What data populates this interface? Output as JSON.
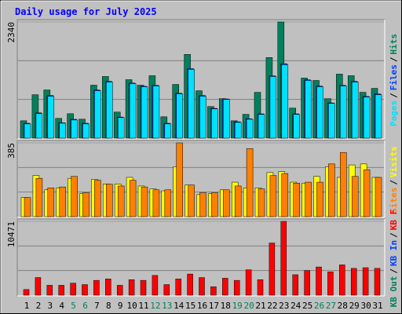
{
  "chart_data": {
    "type": "bar",
    "title": "Daily usage for July 2025",
    "categories": [
      "1",
      "2",
      "3",
      "4",
      "5",
      "6",
      "7",
      "8",
      "9",
      "10",
      "11",
      "12",
      "13",
      "14",
      "15",
      "16",
      "17",
      "18",
      "19",
      "20",
      "21",
      "22",
      "23",
      "24",
      "25",
      "26",
      "27",
      "28",
      "29",
      "30",
      "31"
    ],
    "weekend": [
      false,
      false,
      false,
      false,
      true,
      true,
      false,
      false,
      false,
      false,
      false,
      true,
      true,
      false,
      false,
      false,
      false,
      false,
      true,
      true,
      false,
      false,
      false,
      false,
      false,
      true,
      true,
      false,
      false,
      false,
      false
    ],
    "weekday_label_color": "#000000",
    "weekend_label_color": "#00805c",
    "separator": "/",
    "grid_divisions": 3,
    "panels": [
      {
        "ylim": [
          0,
          2340
        ],
        "yticks": [
          2340
        ],
        "legend_unplotted": [],
        "series": [
          {
            "name": "Hits",
            "color": "#00805c",
            "values": [
              350,
              875,
              971,
              398,
              493,
              382,
              1067,
              1242,
              525,
              1178,
              1067,
              1258,
              430,
              1082,
              1687,
              955,
              637,
              796,
              350,
              480,
              923,
              1624,
              2340,
              605,
              1210,
              1162,
              796,
              1290,
              1258,
              923,
              1003
            ]
          },
          {
            "name": "Files",
            "color": "#0040ff",
            "values": [
              300,
              510,
              860,
              310,
              380,
              300,
              970,
              1145,
              425,
              1110,
              1045,
              1065,
              300,
              905,
              1400,
              860,
              600,
              790,
              330,
              390,
              490,
              1255,
              1500,
              490,
              1175,
              1050,
              710,
              1065,
              1145,
              840,
              890
            ]
          },
          {
            "name": "Pages",
            "color": "#00e0ff",
            "values": [
              287,
              493,
              844,
              302,
              366,
              287,
              955,
              1130,
              414,
              1098,
              1035,
              1051,
              287,
              891,
              1385,
              844,
              589,
              780,
              318,
              380,
              478,
              1242,
              1480,
              478,
              1162,
              1035,
              700,
              1051,
              1130,
              828,
              875
            ]
          }
        ]
      },
      {
        "ylim": [
          0,
          385
        ],
        "yticks": [
          385
        ],
        "legend_unplotted": [],
        "series": [
          {
            "name": "Visits",
            "color": "#ffff00",
            "values": [
              100,
              215,
              140,
              150,
              200,
              120,
              195,
              170,
              170,
              205,
              160,
              145,
              135,
              260,
              165,
              115,
              120,
              140,
              180,
              150,
              150,
              230,
              235,
              180,
              175,
              210,
              260,
              205,
              270,
              275,
              205
            ]
          },
          {
            "name": "Sites",
            "color": "#ff8000",
            "values": [
              100,
              200,
              150,
              155,
              210,
              125,
              190,
              170,
              160,
              190,
              155,
              140,
              140,
              385,
              165,
              125,
              125,
              140,
              160,
              355,
              145,
              215,
              225,
              175,
              180,
              180,
              275,
              335,
              210,
              245,
              205
            ]
          }
        ]
      },
      {
        "ylim": [
          0,
          10471
        ],
        "yticks": [
          10471
        ],
        "series": [
          {
            "name": "KB F",
            "color": "#ff0000",
            "values": [
              800,
              2500,
              1400,
              1400,
              1700,
              1500,
              2100,
              2300,
              1400,
              2200,
              2100,
              2800,
              1500,
              2300,
              3000,
              2500,
              1200,
              2400,
              2100,
              3600,
              2200,
              7400,
              10471,
              2900,
              3500,
              4000,
              3300,
              4300,
              3800,
              3900,
              3800
            ]
          }
        ],
        "legend_unplotted": [
          {
            "name": "KB In",
            "color": "#0040ff"
          },
          {
            "name": "KB Out",
            "color": "#00805c"
          }
        ]
      }
    ]
  }
}
